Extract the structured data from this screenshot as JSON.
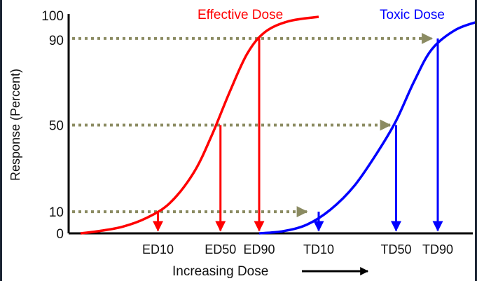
{
  "chart_data": {
    "type": "line",
    "ylabel": "Response (Percent)",
    "xlabel": "Increasing Dose",
    "ylim": [
      0,
      100
    ],
    "yticks": [
      "0",
      "10",
      "50",
      "90",
      "100"
    ],
    "grid": false,
    "series": [
      {
        "name": "Effective Dose",
        "color": "#ff0000",
        "x": [
          0.2,
          0.5,
          0.9,
          1.3,
          1.7,
          2.1,
          2.4,
          2.7,
          3.0,
          3.3,
          3.7,
          4.2
        ],
        "y": [
          0,
          1,
          3,
          7,
          14,
          28,
          45,
          65,
          83,
          93,
          98,
          100
        ]
      },
      {
        "name": "Toxic Dose",
        "color": "#0000ff",
        "x": [
          3.2,
          3.6,
          4.0,
          4.4,
          4.8,
          5.2,
          5.5,
          5.8,
          6.1,
          6.5,
          6.9
        ],
        "y": [
          0,
          1,
          4,
          11,
          22,
          38,
          52,
          70,
          85,
          94,
          98
        ]
      }
    ],
    "markers": [
      {
        "label": "ED10",
        "x": 1.5,
        "y": 10,
        "color": "#ff0000"
      },
      {
        "label": "ED50",
        "x": 2.55,
        "y": 50,
        "color": "#ff0000"
      },
      {
        "label": "ED90",
        "x": 3.2,
        "y": 90,
        "color": "#ff0000"
      },
      {
        "label": "TD10",
        "x": 4.2,
        "y": 10,
        "color": "#0000ff"
      },
      {
        "label": "TD50",
        "x": 5.5,
        "y": 50,
        "color": "#0000ff"
      },
      {
        "label": "TD90",
        "x": 6.2,
        "y": 90,
        "color": "#0000ff"
      }
    ],
    "guides": [
      {
        "y": 10,
        "x_end": 4.0
      },
      {
        "y": 50,
        "x_end": 5.4
      },
      {
        "y": 90,
        "x_end": 6.1
      }
    ],
    "guide_color": "#8b8b62"
  }
}
